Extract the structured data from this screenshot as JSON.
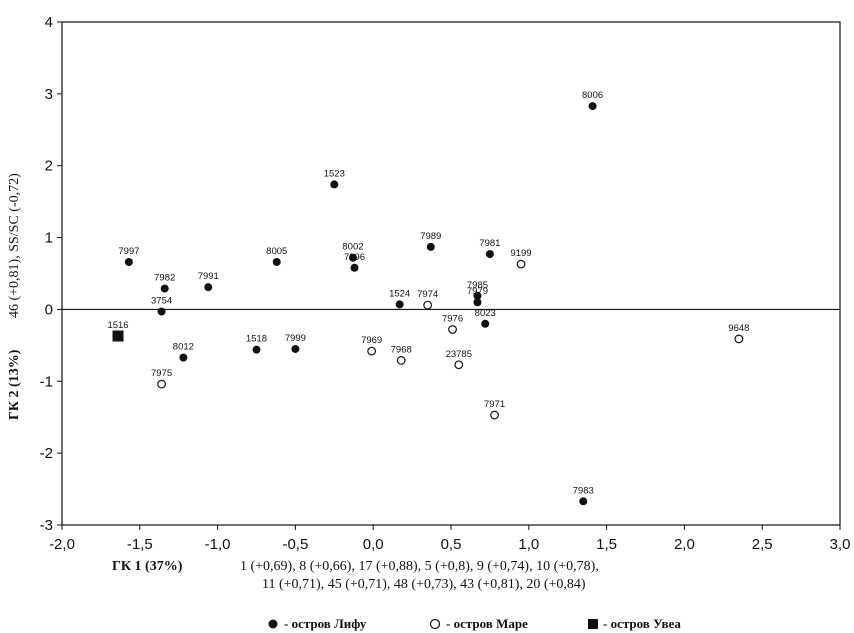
{
  "chart_data": {
    "type": "scatter",
    "xlim": [
      -2.0,
      3.0
    ],
    "ylim": [
      -3,
      4
    ],
    "x_ticks": [
      "-2,0",
      "-1,5",
      "-1,0",
      "-0,5",
      "0,0",
      "0,5",
      "1,0",
      "1,5",
      "2,0",
      "2,5",
      "3,0"
    ],
    "y_ticks": [
      "4",
      "3",
      "2",
      "1",
      "0",
      "-1",
      "-2",
      "-3"
    ],
    "x_tick_values": [
      -2.0,
      -1.5,
      -1.0,
      -0.5,
      0.0,
      0.5,
      1.0,
      1.5,
      2.0,
      2.5,
      3.0
    ],
    "y_tick_values": [
      4,
      3,
      2,
      1,
      0,
      -1,
      -2,
      -3
    ],
    "xlabel": "ГК 1 (37%)",
    "xlabel_sub_line1": "1 (+0,69), 8 (+0,66), 17 (+0,88), 5 (+0,8), 9 (+0,74), 10 (+0,78),",
    "xlabel_sub_line2": "11 (+0,71), 45 (+0,71), 48 (+0,73), 43 (+0,81), 20 (+0,84)",
    "ylabel": "ГК 2 (13%)",
    "ylabel_sub": "46 (+0,81), SS/SC (-0,72)",
    "grid": false,
    "zero_line": true,
    "legend_position": "bottom",
    "series": [
      {
        "name": "- остров Лифу",
        "marker": "filled-circle",
        "color": "#111111",
        "points": [
          {
            "label": "8006",
            "x": 1.41,
            "y": 2.83
          },
          {
            "label": "1523",
            "x": -0.25,
            "y": 1.74
          },
          {
            "label": "7997",
            "x": -1.57,
            "y": 0.66
          },
          {
            "label": "7982",
            "x": -1.34,
            "y": 0.29
          },
          {
            "label": "3754",
            "x": -1.36,
            "y": -0.03
          },
          {
            "label": "7991",
            "x": -1.06,
            "y": 0.31
          },
          {
            "label": "8005",
            "x": -0.62,
            "y": 0.66
          },
          {
            "label": "8002",
            "x": -0.13,
            "y": 0.72
          },
          {
            "label": "7996",
            "x": -0.12,
            "y": 0.58
          },
          {
            "label": "7989",
            "x": 0.37,
            "y": 0.87
          },
          {
            "label": "7981",
            "x": 0.75,
            "y": 0.77
          },
          {
            "label": "1524",
            "x": 0.17,
            "y": 0.07
          },
          {
            "label": "7985",
            "x": 0.67,
            "y": 0.19
          },
          {
            "label": "7979",
            "x": 0.67,
            "y": 0.1
          },
          {
            "label": "8023",
            "x": 0.72,
            "y": -0.2
          },
          {
            "label": "1518",
            "x": -0.75,
            "y": -0.56
          },
          {
            "label": "7999",
            "x": -0.5,
            "y": -0.55
          },
          {
            "label": "8012",
            "x": -1.22,
            "y": -0.67
          },
          {
            "label": "7983",
            "x": 1.35,
            "y": -2.67
          }
        ]
      },
      {
        "name": "- остров Маре",
        "marker": "open-circle",
        "color": "#111111",
        "points": [
          {
            "label": "9199",
            "x": 0.95,
            "y": 0.63
          },
          {
            "label": "7974",
            "x": 0.35,
            "y": 0.06
          },
          {
            "label": "7976",
            "x": 0.51,
            "y": -0.28
          },
          {
            "label": "7969",
            "x": -0.01,
            "y": -0.58
          },
          {
            "label": "7968",
            "x": 0.18,
            "y": -0.71
          },
          {
            "label": "23785",
            "x": 0.55,
            "y": -0.77
          },
          {
            "label": "7975",
            "x": -1.36,
            "y": -1.04
          },
          {
            "label": "7971",
            "x": 0.78,
            "y": -1.47
          },
          {
            "label": "9648",
            "x": 2.35,
            "y": -0.41
          }
        ]
      },
      {
        "name": "- остров Увеа",
        "marker": "filled-square",
        "color": "#111111",
        "points": [
          {
            "label": "1516",
            "x": -1.64,
            "y": -0.37
          }
        ]
      }
    ]
  }
}
